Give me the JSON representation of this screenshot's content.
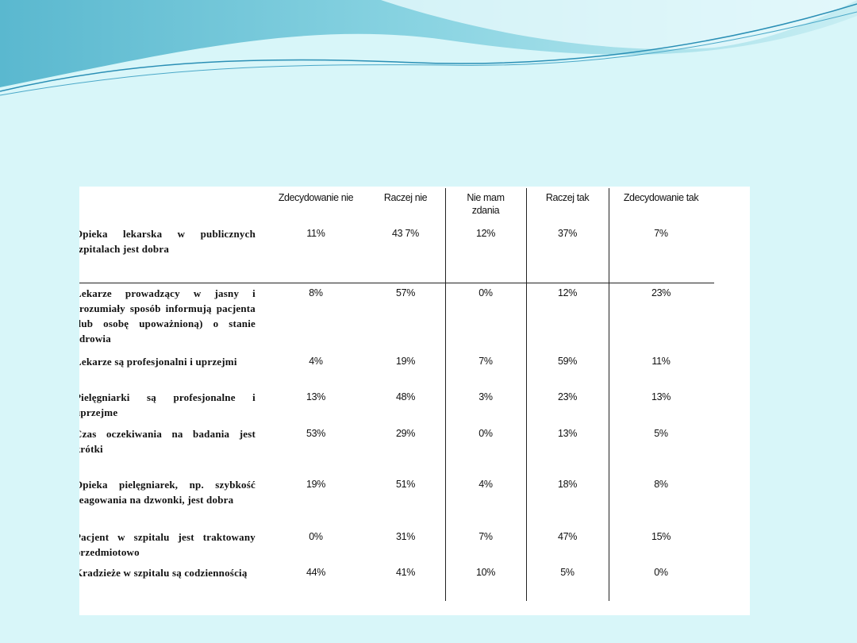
{
  "table": {
    "headers": [
      "Zdecydowanie nie",
      "Raczej nie",
      "Nie mam zdania",
      "Raczej tak",
      "Zdecydowanie tak"
    ],
    "rows": [
      {
        "label": "Opieka lekarska w publicznych szpitalach jest dobra",
        "values": [
          "11%",
          "43 7%",
          "12%",
          "37%",
          "7%"
        ]
      },
      {
        "label": "Lekarze prowadzący w jasny i zrozumiały sposób informują pacjenta (lub osobę upoważnioną) o stanie zdrowia",
        "values": [
          "8%",
          "57%",
          "0%",
          "12%",
          "23%"
        ]
      },
      {
        "label": "Lekarze są profesjonalni i uprzejmi",
        "values": [
          "4%",
          "19%",
          "7%",
          "59%",
          "11%"
        ]
      },
      {
        "label": "Pielęgniarki są profesjonalne i uprzejme",
        "values": [
          "13%",
          "48%",
          "3%",
          "23%",
          "13%"
        ]
      },
      {
        "label": "Czas oczekiwania na badania jest krótki",
        "values": [
          "53%",
          "29%",
          "0%",
          "13%",
          "5%"
        ]
      },
      {
        "label": "Opieka pielęgniarek, np. szybkość reagowania na dzwonki, jest dobra",
        "values": [
          "19%",
          "51%",
          "4%",
          "18%",
          "8%"
        ]
      },
      {
        "label": "Pacjent w szpitalu jest traktowany przedmiotowo",
        "values": [
          "0%",
          "31%",
          "7%",
          "47%",
          "15%"
        ]
      },
      {
        "label": "Kradzieże w szpitalu są codziennością",
        "values": [
          "44%",
          "41%",
          "10%",
          "5%",
          "0%"
        ]
      }
    ]
  }
}
